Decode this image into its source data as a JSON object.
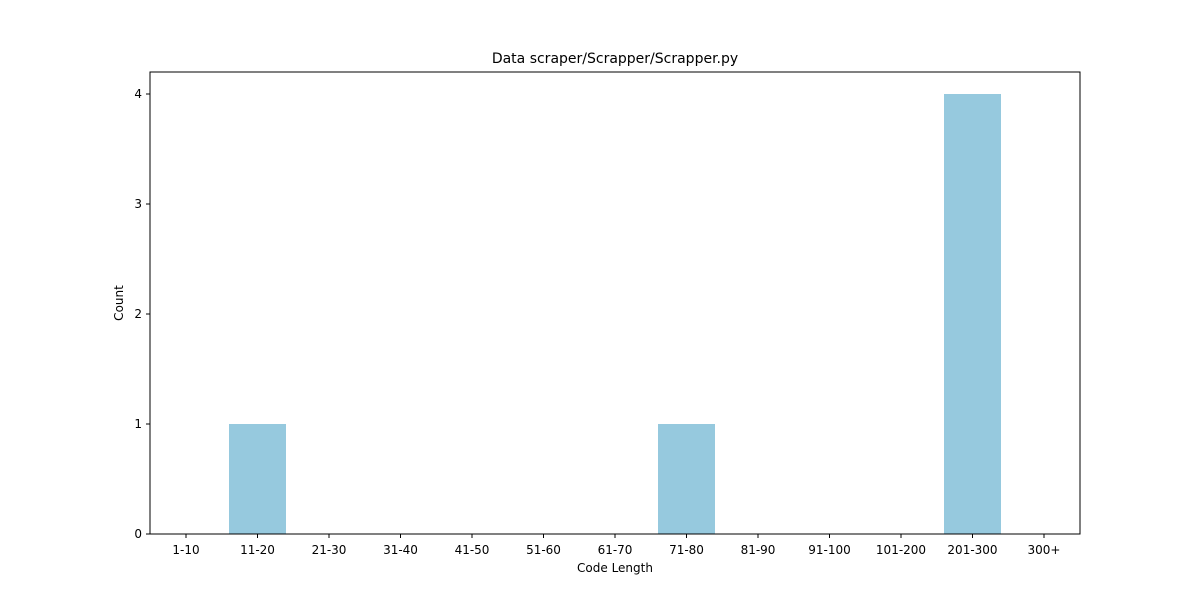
{
  "chart_data": {
    "type": "bar",
    "title": "Data scraper/Scrapper/Scrapper.py",
    "xlabel": "Code Length",
    "ylabel": "Count",
    "categories": [
      "1-10",
      "11-20",
      "21-30",
      "31-40",
      "41-50",
      "51-60",
      "61-70",
      "71-80",
      "81-90",
      "91-100",
      "101-200",
      "201-300",
      "300+"
    ],
    "values": [
      0,
      1,
      0,
      0,
      0,
      0,
      0,
      1,
      0,
      0,
      0,
      4,
      0
    ],
    "ylim": [
      0,
      4.2
    ],
    "yticks": [
      0,
      1,
      2,
      3,
      4
    ],
    "grid": false,
    "bar_color": "#96c9de"
  }
}
